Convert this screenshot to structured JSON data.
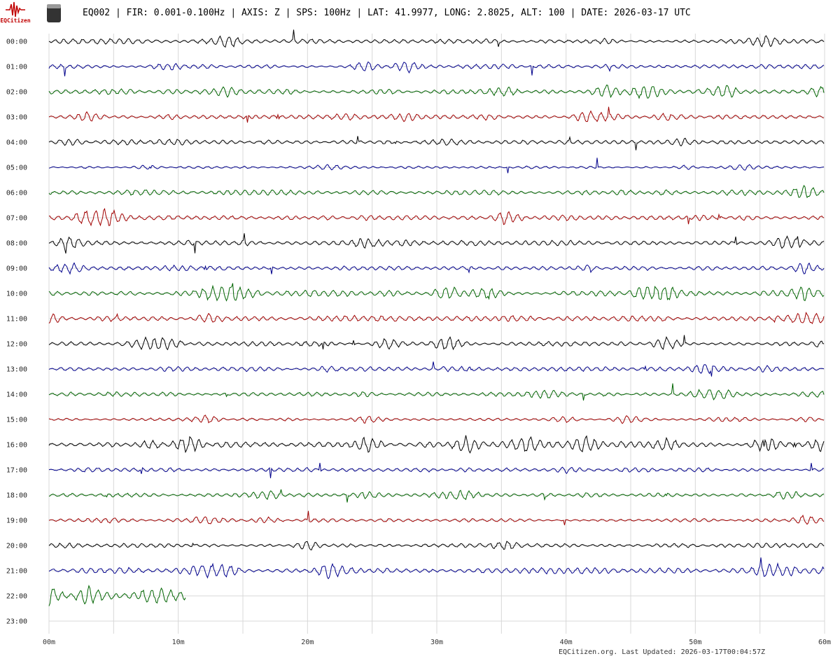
{
  "header": {
    "logo_text": "EQCitizen",
    "title": "EQ002 | FIR: 0.001-0.100Hz | AXIS: Z | SPS: 100Hz | LAT: 41.9977, LONG: 2.8025, ALT: 100 | DATE: 2026-03-17 UTC"
  },
  "rows": [
    "00:00",
    "01:00",
    "02:00",
    "03:00",
    "04:00",
    "05:00",
    "06:00",
    "07:00",
    "08:00",
    "09:00",
    "10:00",
    "11:00",
    "12:00",
    "13:00",
    "14:00",
    "15:00",
    "16:00",
    "17:00",
    "18:00",
    "19:00",
    "20:00",
    "21:00",
    "22:00",
    "23:00"
  ],
  "trace_colors": [
    "#000000",
    "#00008b",
    "#006400",
    "#a00000"
  ],
  "x_ticks": [
    "00m",
    "10m",
    "20m",
    "30m",
    "40m",
    "50m",
    "60m"
  ],
  "footer": "EQCitizen.org. Last Updated: 2026-03-17T00:04:57Z"
}
